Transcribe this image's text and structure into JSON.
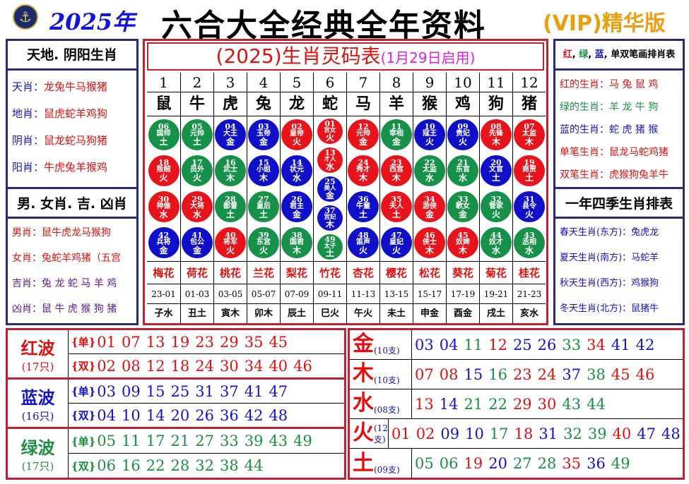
{
  "header": {
    "logo": "HKJC",
    "year": "2025年",
    "title": "六合大全经典全年资料",
    "badge": "(VIP)精华版"
  },
  "colors": {
    "red": "#e01010",
    "blue": "#1414c8",
    "green": "#1a9040",
    "ball_red": "#e8141c",
    "ball_blue": "#1010c8",
    "ball_green": "#17904a"
  },
  "left": {
    "title1": "天地. 阴阳生肖",
    "list1": [
      {
        "k": "天肖",
        "v": "龙兔牛马猴猪"
      },
      {
        "k": "地肖",
        "v": "鼠虎蛇羊鸡狗"
      },
      {
        "k": "阴肖",
        "v": "鼠龙蛇马狗猪"
      },
      {
        "k": "阳肖",
        "v": "牛虎兔羊猴鸡"
      }
    ],
    "title2": "男. 女肖. 吉. 凶肖",
    "list2": [
      {
        "k": "男肖",
        "v": "鼠牛虎龙马猴狗"
      },
      {
        "k": "女肖",
        "v": "兔蛇羊鸡猪（五宫"
      },
      {
        "k": "吉肖",
        "v": "兔 龙 蛇 马 羊 鸡"
      },
      {
        "k": "凶肖",
        "v": "鼠 牛 虎 猴 狗 猪"
      }
    ]
  },
  "right": {
    "title1": {
      "red": "红",
      "green": "绿",
      "blue": "蓝",
      "rest": "单双笔画排肖表"
    },
    "list1": [
      {
        "k": "红的生肖",
        "v": "马 兔 鼠 鸡",
        "c": "red"
      },
      {
        "k": "绿的生肖",
        "v": "羊 龙 牛 狗",
        "c": "green"
      },
      {
        "k": "蓝的生肖",
        "v": "蛇 虎 猪 猴",
        "c": "blue"
      },
      {
        "k": "单笔生肖",
        "v": "鼠龙马蛇鸡猪",
        "c": "red"
      },
      {
        "k": "双笔生肖",
        "v": "虎猴狗兔羊牛",
        "c": "red"
      }
    ],
    "title2": "一年四季生肖排表",
    "list2": [
      {
        "k": "春天生肖(东方)",
        "v": "兔虎龙"
      },
      {
        "k": "夏天生肖(南方)",
        "v": "马蛇羊"
      },
      {
        "k": "秋天生肖(西方)",
        "v": "鸡猴狗"
      },
      {
        "k": "冬天生肖(北方)",
        "v": "鼠猪牛"
      }
    ]
  },
  "center": {
    "title": "(2025)生肖灵码表",
    "subtitle": "(1月29日启用)",
    "columns": [
      {
        "no": "1",
        "zodiac": "鼠",
        "flower": "梅花",
        "time": "23-01",
        "branch": "子水",
        "balls": [
          [
            "06",
            "国师",
            "土",
            "green"
          ],
          [
            "18",
            "叛贼",
            "火",
            "red"
          ],
          [
            "30",
            "神偷",
            "水",
            "red"
          ],
          [
            "42",
            "兵将",
            "金",
            "blue"
          ]
        ]
      },
      {
        "no": "2",
        "zodiac": "牛",
        "flower": "荷花",
        "time": "01-03",
        "branch": "丑土",
        "balls": [
          [
            "05",
            "元帅",
            "土",
            "green"
          ],
          [
            "17",
            "员外",
            "火",
            "green"
          ],
          [
            "29",
            "大将",
            "水",
            "red"
          ],
          [
            "41",
            "包公",
            "金",
            "blue"
          ]
        ]
      },
      {
        "no": "3",
        "zodiac": "虎",
        "flower": "桃花",
        "time": "03-05",
        "branch": "寅木",
        "balls": [
          [
            "04",
            "大王",
            "金",
            "blue"
          ],
          [
            "16",
            "武士",
            "木",
            "green"
          ],
          [
            "28",
            "都督",
            "土",
            "green"
          ],
          [
            "40",
            "将军",
            "火",
            "red"
          ]
        ]
      },
      {
        "no": "4",
        "zodiac": "兔",
        "flower": "兰花",
        "time": "05-07",
        "branch": "卯木",
        "balls": [
          [
            "03",
            "玉帝",
            "金",
            "blue"
          ],
          [
            "15",
            "小姐",
            "木",
            "blue"
          ],
          [
            "27",
            "皇后",
            "土",
            "green"
          ],
          [
            "39",
            "东宫",
            "火",
            "green"
          ]
        ]
      },
      {
        "no": "5",
        "zodiac": "龙",
        "flower": "梨花",
        "time": "07-09",
        "branch": "辰土",
        "balls": [
          [
            "02",
            "皇帝",
            "火",
            "red"
          ],
          [
            "14",
            "状元",
            "水",
            "blue"
          ],
          [
            "26",
            "君主",
            "金",
            "blue"
          ],
          [
            "38",
            "国君",
            "木",
            "green"
          ]
        ]
      },
      {
        "no": "6",
        "zodiac": "蛇",
        "flower": "竹花",
        "time": "09-11",
        "branch": "巳火",
        "balls": [
          [
            "01",
            "宫女",
            "火",
            "red"
          ],
          [
            "13",
            "才人",
            "水",
            "red"
          ],
          [
            "25",
            "美人",
            "金",
            "blue"
          ],
          [
            "37",
            "宫妃",
            "木",
            "blue"
          ],
          [
            "49",
            "太子",
            "土",
            "green"
          ]
        ]
      },
      {
        "no": "7",
        "zodiac": "马",
        "flower": "杏花",
        "time": "11-13",
        "branch": "午火",
        "balls": [
          [
            "12",
            "元帅",
            "金",
            "red"
          ],
          [
            "24",
            "秀才",
            "木",
            "red"
          ],
          [
            "36",
            "牛童",
            "土",
            "blue"
          ],
          [
            "48",
            "笛声",
            "火",
            "blue"
          ]
        ]
      },
      {
        "no": "8",
        "zodiac": "羊",
        "flower": "樱花",
        "time": "13-15",
        "branch": "未土",
        "balls": [
          [
            "11",
            "宰相",
            "金",
            "green"
          ],
          [
            "23",
            "西宫",
            "木",
            "red"
          ],
          [
            "35",
            "夫人",
            "土",
            "red"
          ],
          [
            "47",
            "皇妃",
            "火",
            "blue"
          ]
        ]
      },
      {
        "no": "9",
        "zodiac": "猴",
        "flower": "松花",
        "time": "15-17",
        "branch": "申金",
        "balls": [
          [
            "10",
            "寇王",
            "火",
            "blue"
          ],
          [
            "22",
            "太监",
            "水",
            "green"
          ],
          [
            "34",
            "游侠",
            "金",
            "red"
          ],
          [
            "46",
            "侠士",
            "木",
            "red"
          ]
        ]
      },
      {
        "no": "10",
        "zodiac": "鸡",
        "flower": "葵花",
        "time": "17-19",
        "branch": "酉金",
        "balls": [
          [
            "09",
            "贵妃",
            "火",
            "blue"
          ],
          [
            "21",
            "东官",
            "水",
            "green"
          ],
          [
            "33",
            "歌女",
            "金",
            "green"
          ],
          [
            "45",
            "奴婢",
            "木",
            "red"
          ]
        ]
      },
      {
        "no": "11",
        "zodiac": "狗",
        "flower": "菊花",
        "time": "19-21",
        "branch": "戌土",
        "balls": [
          [
            "08",
            "先锋",
            "木",
            "red"
          ],
          [
            "20",
            "文官",
            "土",
            "blue"
          ],
          [
            "32",
            "管家",
            "火",
            "green"
          ],
          [
            "44",
            "奴才",
            "水",
            "green"
          ]
        ]
      },
      {
        "no": "12",
        "zodiac": "猪",
        "flower": "桂花",
        "time": "21-23",
        "branch": "亥水",
        "balls": [
          [
            "07",
            "太监",
            "木",
            "red"
          ],
          [
            "19",
            "商贾",
            "土",
            "red"
          ],
          [
            "31",
            "县令",
            "火",
            "blue"
          ],
          [
            "43",
            "丞相",
            "水",
            "green"
          ]
        ]
      }
    ]
  },
  "waves": [
    {
      "name": "红波",
      "count": "(17只)",
      "color": "red",
      "single_tag": "{单}",
      "double_tag": "{双}",
      "single": [
        "01",
        "07",
        "13",
        "19",
        "23",
        "29",
        "35",
        "45"
      ],
      "double": [
        "02",
        "08",
        "12",
        "18",
        "24",
        "30",
        "34",
        "40",
        "46"
      ]
    },
    {
      "name": "蓝波",
      "count": "(16只)",
      "color": "blue",
      "single_tag": "{单}",
      "double_tag": "{双}",
      "single": [
        "03",
        "09",
        "15",
        "25",
        "31",
        "37",
        "41",
        "47"
      ],
      "double": [
        "04",
        "10",
        "14",
        "20",
        "26",
        "36",
        "42",
        "48"
      ]
    },
    {
      "name": "绿波",
      "count": "(17只)",
      "color": "green",
      "single_tag": "{单}",
      "double_tag": "{双}",
      "single": [
        "05",
        "11",
        "17",
        "21",
        "27",
        "33",
        "39",
        "43",
        "49"
      ],
      "double": [
        "06",
        "16",
        "22",
        "28",
        "32",
        "38",
        "44"
      ]
    }
  ],
  "elements": [
    {
      "name": "金",
      "count": "(10支)",
      "numbers": [
        "03",
        "04",
        "11",
        "12",
        "25",
        "26",
        "33",
        "34",
        "41",
        "42"
      ]
    },
    {
      "name": "木",
      "count": "(10支)",
      "numbers": [
        "07",
        "08",
        "15",
        "16",
        "23",
        "24",
        "37",
        "38",
        "45",
        "46"
      ]
    },
    {
      "name": "水",
      "count": "(08支)",
      "numbers": [
        "13",
        "14",
        "21",
        "22",
        "29",
        "30",
        "43",
        "44"
      ]
    },
    {
      "name": "火",
      "count": "(12支)",
      "numbers": [
        "01",
        "02",
        "09",
        "10",
        "17",
        "18",
        "31",
        "32",
        "39",
        "40",
        "47",
        "48"
      ]
    },
    {
      "name": "土",
      "count": "(09支)",
      "numbers": [
        "05",
        "06",
        "19",
        "20",
        "27",
        "28",
        "35",
        "36",
        "49"
      ]
    }
  ]
}
